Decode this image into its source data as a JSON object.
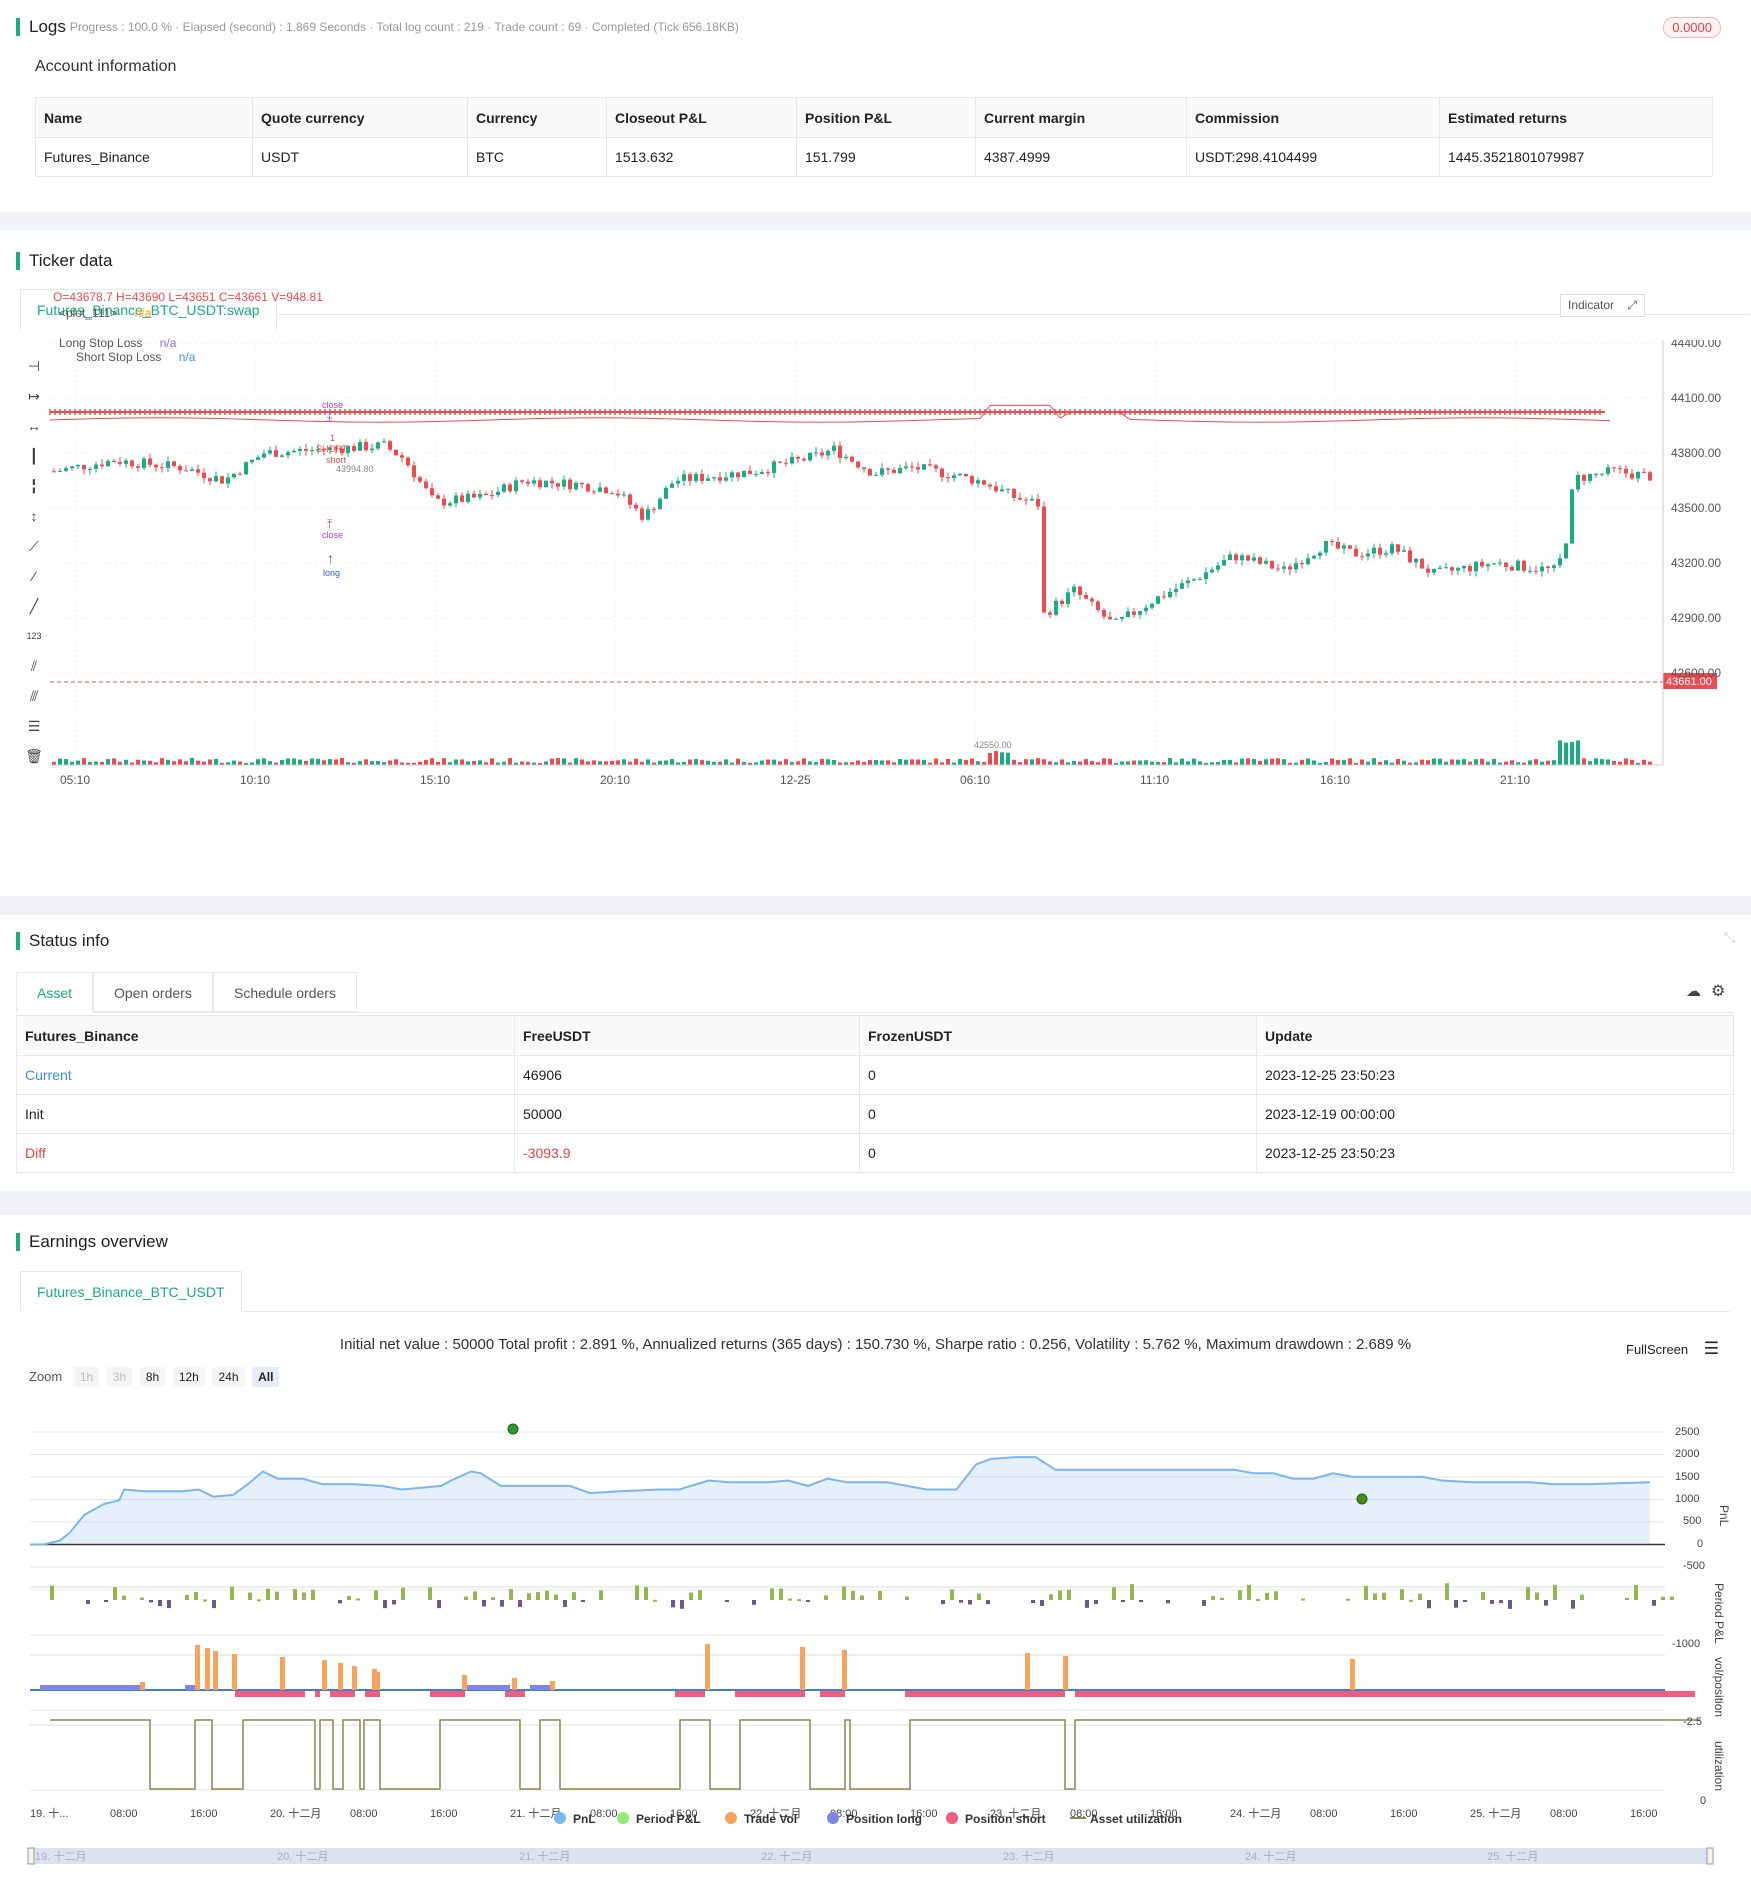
{
  "logs": {
    "title": "Logs",
    "status": "Progress : 100.0 % · Elapsed (second) : 1.869 Seconds · Total log count : 219 · Trade count : 69 · Completed (Tick 656.18KB)",
    "badge": "0.0000"
  },
  "account": {
    "title": "Account information",
    "headers": [
      "Name",
      "Quote currency",
      "Currency",
      "Closeout P&L",
      "Position P&L",
      "Current margin",
      "Commission",
      "Estimated returns"
    ],
    "row": [
      "Futures_Binance",
      "USDT",
      "BTC",
      "1513.632",
      "151.799",
      "4387.4999",
      "USDT:298.4104499",
      "1445.3521801079987"
    ]
  },
  "ticker": {
    "title": "Ticker data",
    "tab": "Futures_Binance_BTC_USDT:swap",
    "ohlc": "O=43678.7 H=43690 L=43651 C=43661 V=948.81",
    "plot_label": "<plot_111>",
    "plot_value": "n/a",
    "long_stop": "Long Stop Loss",
    "long_stop_val": "n/a",
    "short_stop": "Short Stop Loss",
    "short_stop_val": "n/a",
    "indicator_btn": "Indicator",
    "price_ticks": [
      "44400.00",
      "44100.00",
      "43800.00",
      "43500.00",
      "43200.00",
      "42900.00",
      "42600.00"
    ],
    "time_ticks": [
      "05:10",
      "10:10",
      "15:10",
      "20:10",
      "12-25",
      "06:10",
      "11:10",
      "16:10",
      "21:10"
    ],
    "current_price": "43661.00",
    "high_label": "43994.80",
    "low_label": "42550.00",
    "markers": {
      "close1": "close",
      "short_count": "1",
      "short_label": "SHORT",
      "short2": "short",
      "close2": "close",
      "long": "long"
    },
    "colors": {
      "up": "#1aad82",
      "down": "#ee4a4f",
      "band": "#ee4a4f"
    }
  },
  "status": {
    "title": "Status info",
    "tabs": [
      "Asset",
      "Open orders",
      "Schedule orders"
    ],
    "headers": [
      "Futures_Binance",
      "FreeUSDT",
      "FrozenUSDT",
      "Update"
    ],
    "rows": [
      [
        "Current",
        "46906",
        "0",
        "2023-12-25 23:50:23"
      ],
      [
        "Init",
        "50000",
        "0",
        "2023-12-19 00:00:00"
      ],
      [
        "Diff",
        "-3093.9",
        "0",
        "2023-12-25 23:50:23"
      ]
    ]
  },
  "earnings": {
    "title": "Earnings overview",
    "tab": "Futures_Binance_BTC_USDT",
    "summary": "Initial net value : 50000 Total profit : 2.891 %, Annualized returns (365 days) : 150.730 %, Sharpe ratio : 0.256, Volatility : 5.762 %, Maximum drawdown : 2.689 %",
    "fullscreen": "FullScreen",
    "zoom_label": "Zoom",
    "zoom": [
      "1h",
      "3h",
      "8h",
      "12h",
      "24h",
      "All"
    ],
    "pnl_ticks": [
      "2500",
      "2000",
      "1500",
      "1000",
      "500",
      "0",
      "-500"
    ],
    "period_tick": "-1000",
    "vol_tick": "-2.5",
    "util_tick": "0",
    "axis_titles": [
      "PnL",
      "Period P&L",
      "vol/position",
      "utilization"
    ],
    "x_ticks": [
      "19. 十...",
      "08:00",
      "16:00",
      "20. 十二月",
      "08:00",
      "16:00",
      "21. 十二月",
      "08:00",
      "16:00",
      "22. 十二月",
      "08:00",
      "16:00",
      "23. 十二月",
      "08:00",
      "16:00",
      "24. 十二月",
      "08:00",
      "16:00",
      "25. 十二月",
      "08:00",
      "16:00"
    ],
    "nav_ticks": [
      "19. 十二月",
      "20. 十二月",
      "21. 十二月",
      "22. 十二月",
      "23. 十二月",
      "24. 十二月",
      "25. 十二月"
    ],
    "legend": [
      {
        "label": "PnL",
        "color": "#7cb5ec"
      },
      {
        "label": "Period P&L",
        "color": "#90ed7d"
      },
      {
        "label": "Trade Vol",
        "color": "#f7a35c"
      },
      {
        "label": "Position long",
        "color": "#8085e9"
      },
      {
        "label": "Position short",
        "color": "#f15c80"
      },
      {
        "label": "Asset utilization",
        "color": "#8d8650"
      }
    ]
  }
}
